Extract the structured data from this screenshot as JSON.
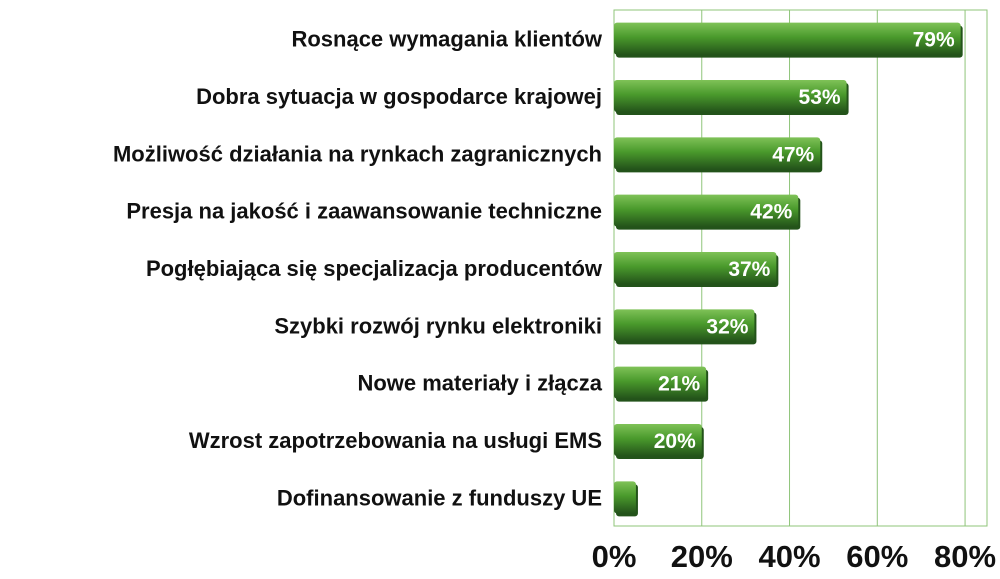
{
  "chart_data": {
    "type": "bar",
    "orientation": "horizontal",
    "categories": [
      "Rosnące wymagania klientów",
      "Dobra sytuacja w gospodarce krajowej",
      "Możliwość działania na rynkach zagranicznych",
      "Presja na jakość i zaawansowanie techniczne",
      "Pogłębiająca się specjalizacja producentów",
      "Szybki rozwój rynku elektroniki",
      "Nowe materiały i złącza",
      "Wzrost zapotrzebowania na usługi EMS",
      "Dofinansowanie z funduszy UE"
    ],
    "values": [
      79,
      53,
      47,
      42,
      37,
      32,
      21,
      20,
      5
    ],
    "data_labels": [
      "79%",
      "53%",
      "47%",
      "42%",
      "37%",
      "32%",
      "21%",
      "20%",
      ""
    ],
    "xlim": [
      0,
      85
    ],
    "x_ticks": [
      0,
      20,
      40,
      60,
      80
    ],
    "x_tick_labels": [
      "0%",
      "20%",
      "40%",
      "60%",
      "80%"
    ],
    "grid": true,
    "legend": "none",
    "colors": {
      "bar": "#4a9a2c",
      "bar_highlight": "#7fc257",
      "bar_shadow": "#23531a",
      "grid": "#8fc47a",
      "label_text": "#111111",
      "value_text": "#ffffff"
    }
  }
}
